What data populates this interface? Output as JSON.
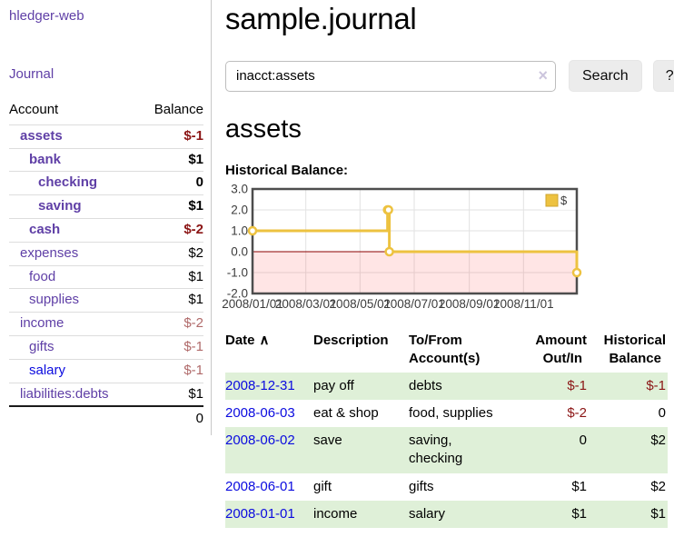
{
  "colors": {
    "purple": "#5f3fa6",
    "link_blue": "#0b0bdf",
    "neg_strong": "#8b1515",
    "neg_soft": "#b06a6a",
    "stripe_green": "#dff0d8",
    "chart_yellow": "#edc240",
    "chart_zero_line": "#8b0000",
    "chart_border": "#4d4d4d"
  },
  "app": {
    "brand": "hledger-web"
  },
  "sidebar": {
    "journal_label": "Journal",
    "accounts_table": {
      "headers": [
        "Account",
        "Balance"
      ],
      "rows": [
        {
          "account": "assets",
          "balance": "$-1",
          "depth": 1,
          "emphasis": true,
          "balance_class": "neg-strong"
        },
        {
          "account": "bank",
          "balance": "$1",
          "depth": 2,
          "emphasis": true,
          "balance_class": "pos"
        },
        {
          "account": "checking",
          "balance": "0",
          "depth": 3,
          "emphasis": true,
          "balance_class": "pos"
        },
        {
          "account": "saving",
          "balance": "$1",
          "depth": 3,
          "emphasis": true,
          "balance_class": "pos"
        },
        {
          "account": "cash",
          "balance": "$-2",
          "depth": 2,
          "emphasis": true,
          "balance_class": "neg-strong"
        },
        {
          "account": "expenses",
          "balance": "$2",
          "depth": 1,
          "balance_class": "pos"
        },
        {
          "account": "food",
          "balance": "$1",
          "depth": 2,
          "balance_class": "pos"
        },
        {
          "account": "supplies",
          "balance": "$1",
          "depth": 2,
          "balance_class": "pos"
        },
        {
          "account": "income",
          "balance": "$-2",
          "depth": 1,
          "balance_class": "neg-soft"
        },
        {
          "account": "gifts",
          "balance": "$-1",
          "depth": 2,
          "balance_class": "neg-soft"
        },
        {
          "account": "salary",
          "balance": "$-1",
          "depth": 2,
          "balance_class": "neg-soft",
          "link_blue": true
        },
        {
          "account": "liabilities:debts",
          "balance": "$1",
          "depth": 1,
          "balance_class": "pos"
        }
      ],
      "total": "0"
    }
  },
  "main": {
    "title": "sample.journal",
    "search": {
      "value": "inacct:assets",
      "clear_icon": "×",
      "button_label": "Search",
      "help_label": "?"
    },
    "account_heading": "assets",
    "chart_label": "Historical Balance:"
  },
  "chart_data": {
    "type": "line",
    "step": true,
    "title": "Historical Balance",
    "series": [
      {
        "name": "$",
        "color": "#edc240",
        "points": [
          [
            "2008-01-01",
            1
          ],
          [
            "2008-06-01",
            2
          ],
          [
            "2008-06-02",
            2
          ],
          [
            "2008-06-03",
            0
          ],
          [
            "2008-12-31",
            -1
          ]
        ]
      }
    ],
    "xrange": [
      "2008-01-01",
      "2008-12-31"
    ],
    "ylim": [
      -2,
      3
    ],
    "yticks": [
      3.0,
      2.0,
      1.0,
      0.0,
      -1.0,
      -2.0
    ],
    "xticks": [
      "2008/01/01",
      "2008/03/01",
      "2008/05/01",
      "2008/07/01",
      "2008/09/01",
      "2008/11/01"
    ],
    "grid": true,
    "legend": {
      "label": "$",
      "position": "top-right"
    },
    "negative_region_color": "rgba(255,0,0,0.10)",
    "zero_line_color": "#8b0000"
  },
  "register": {
    "headers": [
      {
        "label": "Date",
        "sort_icon": "∧",
        "align": "left"
      },
      {
        "label": "Description",
        "align": "left"
      },
      {
        "label": "To/From Account(s)",
        "align": "left"
      },
      {
        "label": "Amount Out/In",
        "align": "right"
      },
      {
        "label": "Historical Balance",
        "align": "right"
      }
    ],
    "rows": [
      {
        "date": "2008-12-31",
        "description": "pay off",
        "accounts": "debts",
        "amount": "$-1",
        "amount_class": "neg",
        "balance": "$-1",
        "balance_class": "neg"
      },
      {
        "date": "2008-06-03",
        "description": "eat & shop",
        "accounts": "food, supplies",
        "amount": "$-2",
        "amount_class": "neg",
        "balance": "0",
        "balance_class": "pos"
      },
      {
        "date": "2008-06-02",
        "description": "save",
        "accounts": "saving, checking",
        "amount": "0",
        "amount_class": "pos",
        "balance": "$2",
        "balance_class": "pos"
      },
      {
        "date": "2008-06-01",
        "description": "gift",
        "accounts": "gifts",
        "amount": "$1",
        "amount_class": "pos",
        "balance": "$2",
        "balance_class": "pos"
      },
      {
        "date": "2008-01-01",
        "description": "income",
        "accounts": "salary",
        "amount": "$1",
        "amount_class": "pos",
        "balance": "$1",
        "balance_class": "pos"
      }
    ]
  }
}
